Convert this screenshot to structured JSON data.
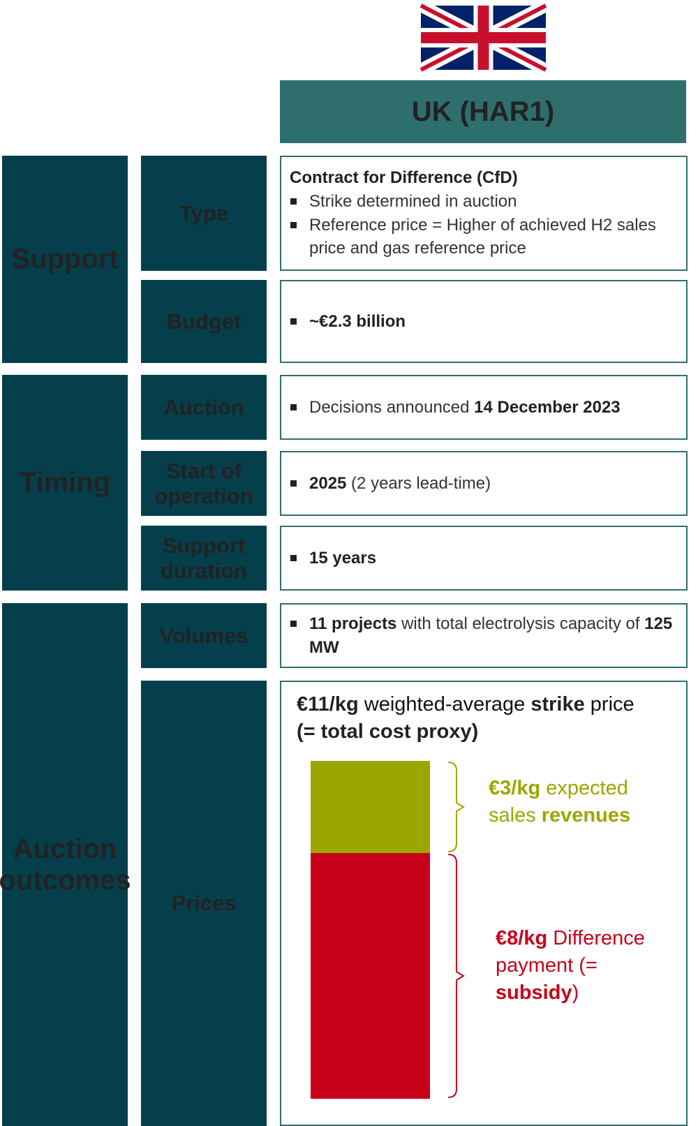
{
  "header": {
    "country": "UK (HAR1)"
  },
  "groups": [
    {
      "label": "Support",
      "rows": [
        {
          "label": "Type",
          "heading": "Contract for Difference (CfD)",
          "bullets": [
            {
              "runs": [
                {
                  "text": "Strike determined in auction"
                }
              ]
            },
            {
              "runs": [
                {
                  "text": "Reference price = Higher of achieved H2 sales price and gas reference price"
                }
              ]
            }
          ]
        },
        {
          "label": "Budget",
          "bullets": [
            {
              "runs": [
                {
                  "text": "~€2.3 billion",
                  "bold": true
                }
              ]
            }
          ]
        }
      ]
    },
    {
      "label": "Timing",
      "rows": [
        {
          "label": "Auction",
          "bullets": [
            {
              "runs": [
                {
                  "text": "Decisions announced "
                },
                {
                  "text": "14 December 2023",
                  "bold": true
                }
              ]
            }
          ]
        },
        {
          "label": "Start of operation",
          "bullets": [
            {
              "runs": [
                {
                  "text": "2025",
                  "bold": true
                },
                {
                  "text": " (2 years lead-time)"
                }
              ]
            }
          ]
        },
        {
          "label": "Support duration",
          "bullets": [
            {
              "runs": [
                {
                  "text": "15 years",
                  "bold": true
                }
              ]
            }
          ]
        }
      ]
    },
    {
      "label": "Auction outcomes",
      "rows": [
        {
          "label": "Volumes",
          "bullets": [
            {
              "runs": [
                {
                  "text": "11 projects",
                  "bold": true
                },
                {
                  "text": " with total electrolysis capacity of "
                },
                {
                  "text": "125 MW",
                  "bold": true
                }
              ]
            }
          ]
        },
        {
          "label": "Prices"
        }
      ]
    }
  ],
  "prices": {
    "strike": {
      "runs": [
        {
          "text": "€11/kg",
          "bold": true
        },
        {
          "text": " weighted-average "
        },
        {
          "text": "strike",
          "bold": true
        },
        {
          "text": " price"
        }
      ]
    },
    "strike_note": "(= total cost proxy)",
    "segments": [
      {
        "value": 3,
        "color": "#9ba600",
        "runs": [
          {
            "text": "€3/kg",
            "bold": true
          },
          {
            "text": " expected sales "
          },
          {
            "text": "revenues",
            "bold": true
          }
        ]
      },
      {
        "value": 8,
        "color": "#c8001a",
        "runs": [
          {
            "text": "€8/kg",
            "bold": true
          },
          {
            "text": " Difference payment (= "
          },
          {
            "text": "subsidy",
            "bold": true
          },
          {
            "text": ")"
          }
        ]
      }
    ]
  }
}
